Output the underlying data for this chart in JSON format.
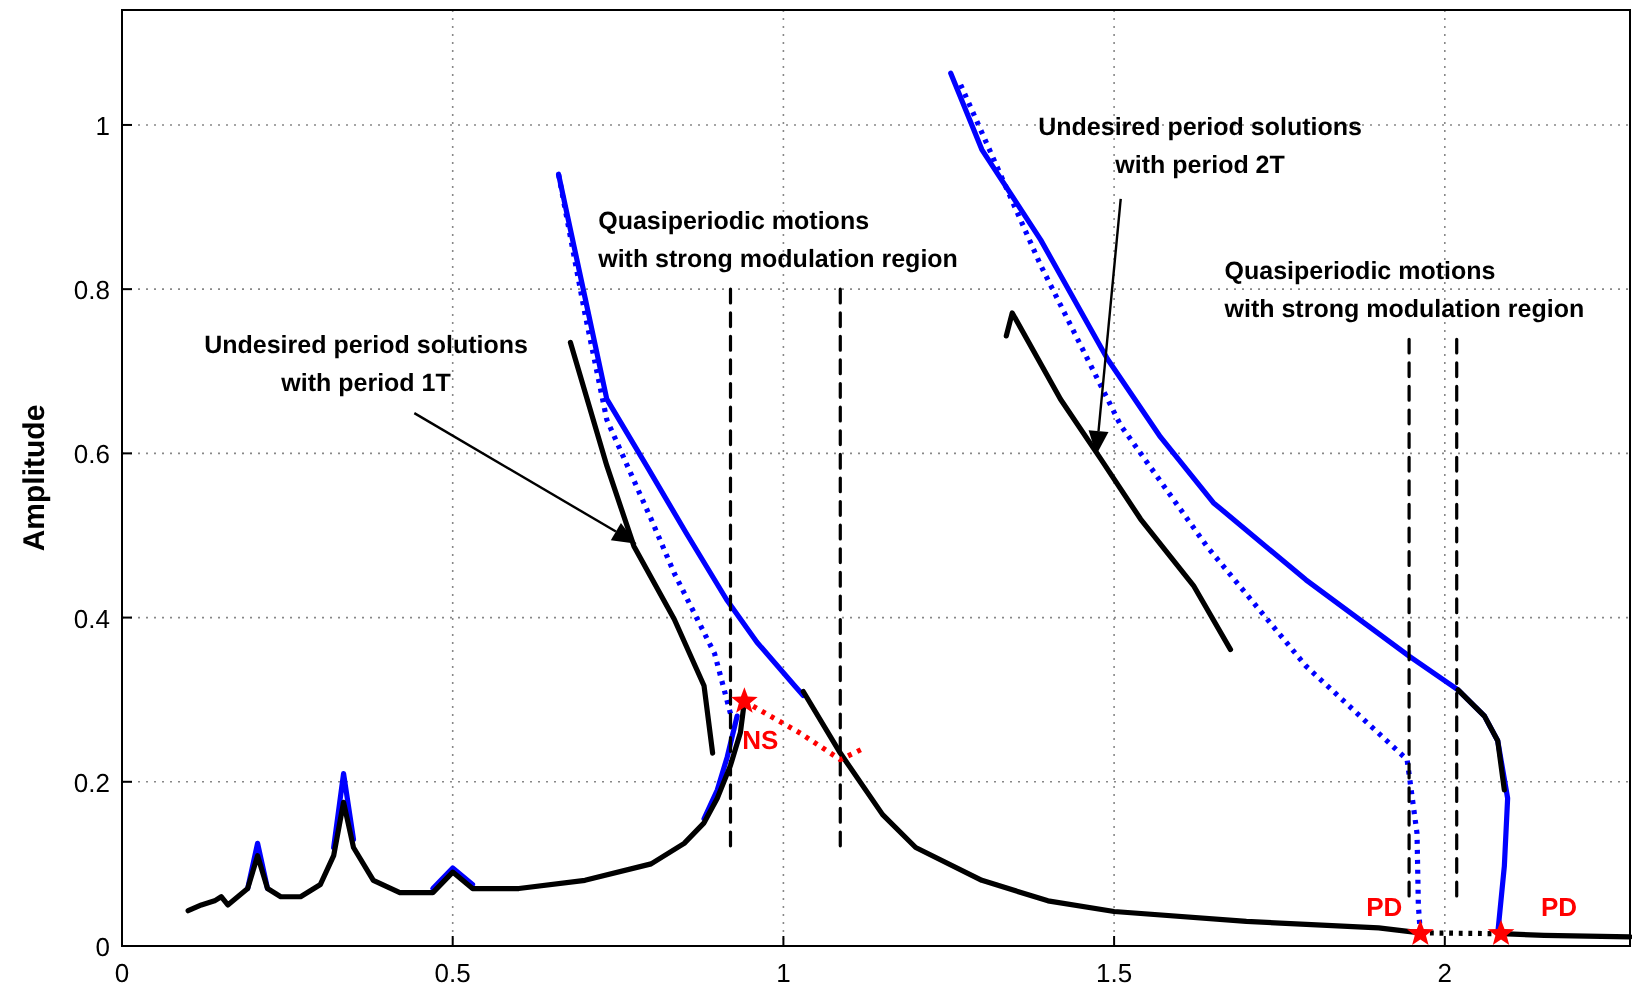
{
  "chart_data": {
    "type": "line",
    "ylabel": "Amplitude",
    "xlim": [
      0,
      2.28
    ],
    "xticks": [
      0,
      0.5,
      1,
      1.5,
      2
    ],
    "ylim": [
      0,
      1.14
    ],
    "yticks": [
      0,
      0.2,
      0.4,
      0.6,
      0.8,
      1
    ],
    "grid": true,
    "marker": "none",
    "series": [
      {
        "color": "#0000ff",
        "line_style": "solid",
        "x": [
          0.19,
          0.205,
          0.22
        ],
        "values": [
          0.07,
          0.125,
          0.07
        ]
      },
      {
        "color": "#0000ff",
        "line_style": "solid",
        "x": [
          0.32,
          0.335,
          0.35
        ],
        "values": [
          0.12,
          0.21,
          0.13
        ]
      },
      {
        "color": "#0000ff",
        "line_style": "solid",
        "x": [
          0.47,
          0.5,
          0.53
        ],
        "values": [
          0.07,
          0.095,
          0.075
        ]
      },
      {
        "color": "#0000ff",
        "line_style": "solid",
        "x": [
          0.88,
          0.9,
          0.915,
          0.93
        ],
        "values": [
          0.155,
          0.19,
          0.23,
          0.28
        ]
      },
      {
        "color": "#0000ff",
        "line_style": "solid",
        "x": [
          0.66,
          0.7,
          0.733,
          0.793,
          0.853,
          0.914,
          0.96,
          1.017,
          1.03
        ],
        "values": [
          0.94,
          0.79,
          0.666,
          0.585,
          0.503,
          0.422,
          0.37,
          0.317,
          0.305
        ]
      },
      {
        "color": "#0000ff",
        "line_style": "dotted",
        "x": [
          0.66,
          0.7,
          0.733,
          0.8,
          0.835,
          0.896,
          0.92
        ],
        "values": [
          0.94,
          0.77,
          0.641,
          0.52,
          0.454,
          0.356,
          0.283
        ]
      },
      {
        "color": "#0000ff",
        "line_style": "solid",
        "x": [
          1.253,
          1.3,
          1.389,
          1.49,
          1.57,
          1.65,
          1.79,
          1.946,
          2.02,
          2.06,
          2.08,
          2.095,
          2.09,
          2.08
        ],
        "values": [
          1.063,
          0.97,
          0.86,
          0.715,
          0.62,
          0.54,
          0.446,
          0.353,
          0.312,
          0.28,
          0.25,
          0.18,
          0.097,
          0.015
        ]
      },
      {
        "color": "#0000ff",
        "line_style": "dotted",
        "x": [
          1.268,
          1.389,
          1.51,
          1.64,
          1.79,
          1.943,
          1.958,
          1.96,
          1.963
        ],
        "values": [
          1.049,
          0.829,
          0.634,
          0.487,
          0.341,
          0.227,
          0.137,
          0.05,
          0.015
        ]
      },
      {
        "color": "#000000",
        "line_style": "solid",
        "x": [
          0.1,
          0.12,
          0.14,
          0.15,
          0.16,
          0.175,
          0.19,
          0.205,
          0.22,
          0.24,
          0.27,
          0.3,
          0.32,
          0.335,
          0.35,
          0.38,
          0.42,
          0.47,
          0.5,
          0.53,
          0.6,
          0.7,
          0.8,
          0.85,
          0.88,
          0.9,
          0.92,
          0.935,
          0.941
        ],
        "values": [
          0.043,
          0.05,
          0.055,
          0.06,
          0.05,
          0.06,
          0.07,
          0.11,
          0.07,
          0.06,
          0.06,
          0.075,
          0.11,
          0.175,
          0.12,
          0.08,
          0.065,
          0.065,
          0.09,
          0.07,
          0.07,
          0.08,
          0.1,
          0.125,
          0.15,
          0.18,
          0.22,
          0.26,
          0.298
        ]
      },
      {
        "color": "#000000",
        "line_style": "solid",
        "x": [
          1.03,
          1.086,
          1.15,
          1.2,
          1.3,
          1.4,
          1.5,
          1.7,
          1.9,
          1.963
        ],
        "values": [
          0.31,
          0.235,
          0.16,
          0.12,
          0.08,
          0.055,
          0.042,
          0.03,
          0.022,
          0.016
        ]
      },
      {
        "color": "#000000",
        "line_style": "dotted",
        "x": [
          1.963,
          2.085
        ],
        "values": [
          0.016,
          0.015
        ]
      },
      {
        "color": "#000000",
        "line_style": "solid",
        "x": [
          2.085,
          2.15,
          2.28
        ],
        "values": [
          0.015,
          0.013,
          0.011
        ]
      },
      {
        "color": "#000000",
        "line_style": "solid",
        "x": [
          2.02,
          2.06,
          2.08,
          2.09
        ],
        "values": [
          0.312,
          0.28,
          0.25,
          0.19
        ]
      },
      {
        "color": "#000000",
        "line_style": "solid",
        "x": [
          0.678,
          0.733,
          0.774,
          0.835,
          0.88,
          0.893
        ],
        "values": [
          0.735,
          0.585,
          0.487,
          0.398,
          0.317,
          0.235
        ]
      },
      {
        "color": "#000000",
        "line_style": "solid",
        "x": [
          1.337,
          1.346,
          1.419,
          1.48,
          1.54,
          1.62,
          1.676
        ],
        "values": [
          0.743,
          0.771,
          0.666,
          0.593,
          0.52,
          0.439,
          0.361
        ]
      },
      {
        "color": "#000000",
        "line_style": "dashed",
        "x": [
          0.92,
          0.92
        ],
        "values": [
          0.8,
          0.122
        ]
      },
      {
        "color": "#000000",
        "line_style": "dashed",
        "x": [
          1.086,
          1.086
        ],
        "values": [
          0.8,
          0.122
        ]
      },
      {
        "color": "#000000",
        "line_style": "dashed",
        "x": [
          1.946,
          1.946
        ],
        "values": [
          0.739,
          0.061
        ]
      },
      {
        "color": "#000000",
        "line_style": "dashed",
        "x": [
          2.018,
          2.018
        ],
        "values": [
          0.739,
          0.061
        ]
      },
      {
        "color": "#ff0000",
        "line_style": "dotted",
        "x": [
          0.941,
          1.026,
          1.086,
          1.117
        ],
        "values": [
          0.298,
          0.259,
          0.227,
          0.239
        ]
      },
      {
        "type": "scatter",
        "color": "#ff0000",
        "marker": "star",
        "x": [
          0.941,
          1.963,
          2.085
        ],
        "values": [
          0.298,
          0.015,
          0.015
        ]
      }
    ],
    "annotations": [
      "Undesired period solutions\nwith period 1T",
      "Quasiperiodic motions\nwith strong modulation region",
      "Undesired period solutions\nwith period 2T",
      "Quasiperiodic motions\nwith strong modulation region",
      {
        "text": "NS",
        "x": 0.941,
        "y": 0.298
      },
      {
        "text": "PD",
        "x": 1.963,
        "y": 0.015
      },
      {
        "text": "PD",
        "x": 2.085,
        "y": 0.015
      }
    ]
  }
}
